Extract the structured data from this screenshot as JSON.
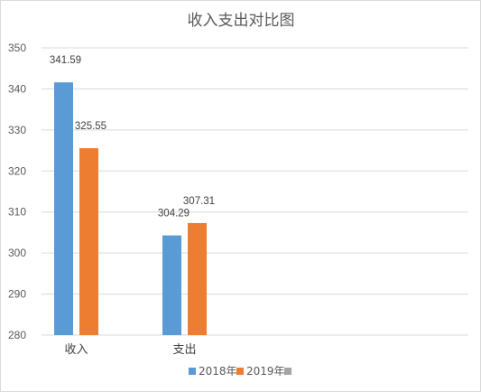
{
  "chart_data": {
    "type": "bar",
    "title": "收入支出对比图",
    "categories": [
      "收入",
      "支出"
    ],
    "series": [
      {
        "name": "2018年",
        "values": [
          341.59,
          304.29
        ],
        "color": "#5b9bd5"
      },
      {
        "name": "2019年",
        "values": [
          325.55,
          307.31
        ],
        "color": "#ed7d31"
      },
      {
        "name": "",
        "values": [
          null,
          null
        ],
        "color": "#a5a5a5"
      }
    ],
    "ylim": [
      280,
      350
    ],
    "yticks": [
      280,
      290,
      300,
      310,
      320,
      330,
      340,
      350
    ],
    "grid": true,
    "legend": "bottom",
    "data_labels": true,
    "xlabel": "",
    "ylabel": ""
  }
}
